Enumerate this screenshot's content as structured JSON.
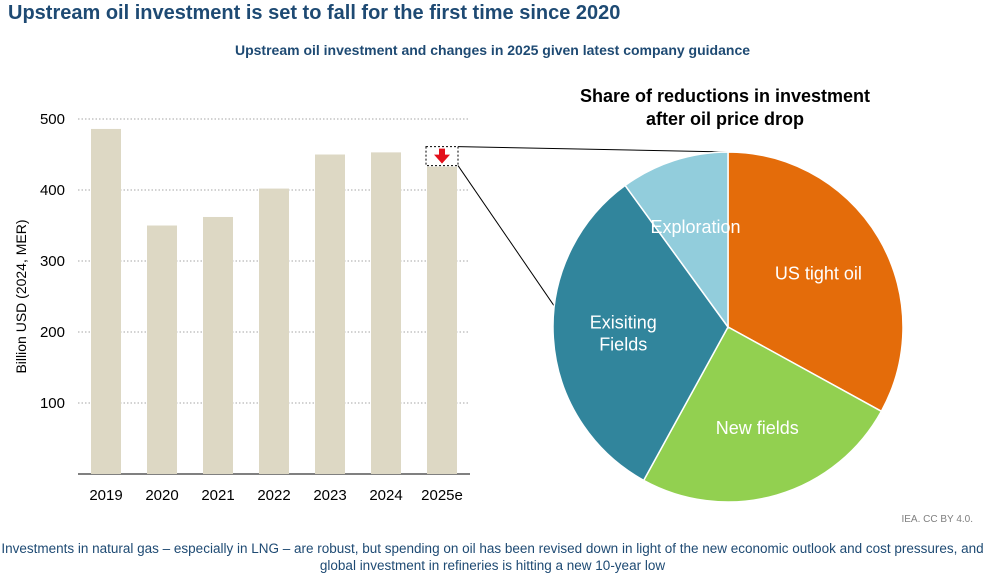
{
  "header": {
    "title": "Upstream oil investment is set to fall for the first time since 2020",
    "subtitle": "Upstream oil investment and changes in 2025 given latest company guidance"
  },
  "chart_data": [
    {
      "type": "bar",
      "categories": [
        "2019",
        "2020",
        "2021",
        "2022",
        "2023",
        "2024",
        "2025e"
      ],
      "values": [
        486,
        350,
        362,
        402,
        450,
        453,
        433
      ],
      "ylabel": "Billion USD (2024, MER)",
      "yticks": [
        100,
        200,
        300,
        400,
        500
      ],
      "ylim": [
        0,
        500
      ],
      "grid": true,
      "color": "#ddd8c4",
      "annotation": {
        "category": "2025e",
        "marker": "down-arrow",
        "color": "#e3101b"
      }
    },
    {
      "type": "pie",
      "title": "Share of reductions in investment after oil price drop",
      "labels": [
        "US tight oil",
        "New fields",
        "Exisiting Fields",
        "Exploration"
      ],
      "values": [
        33,
        25,
        32,
        10
      ],
      "colors": [
        "#e46c0a",
        "#92d050",
        "#31859c",
        "#92cddc"
      ]
    }
  ],
  "credit": "IEA. CC BY 4.0.",
  "footer": "Investments in natural gas – especially in LNG – are robust, but spending on oil has been revised down in light of the new economic outlook and cost pressures, and global investment in refineries is hitting a new 10-year low"
}
